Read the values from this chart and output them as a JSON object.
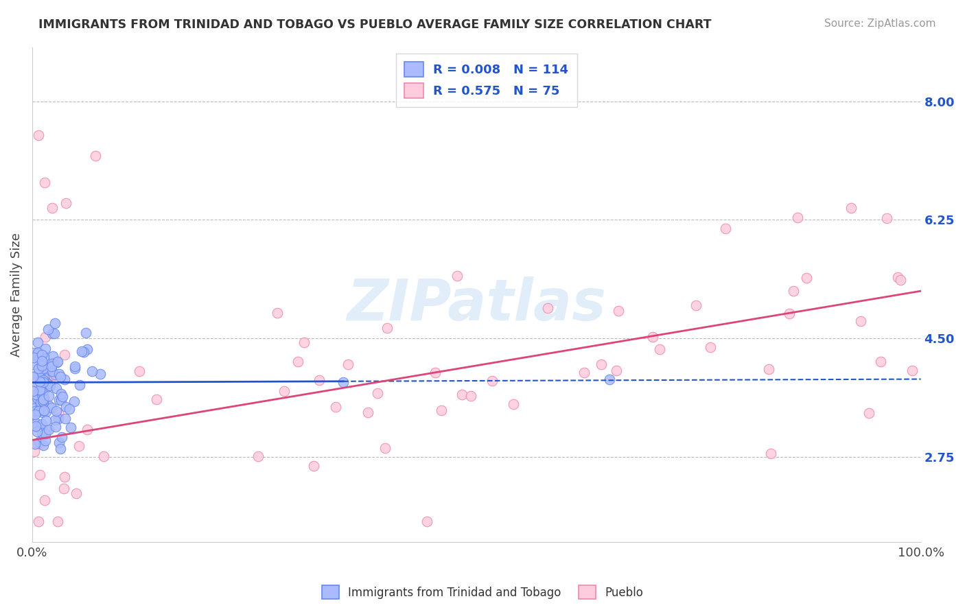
{
  "title": "IMMIGRANTS FROM TRINIDAD AND TOBAGO VS PUEBLO AVERAGE FAMILY SIZE CORRELATION CHART",
  "source": "Source: ZipAtlas.com",
  "ylabel": "Average Family Size",
  "xlim": [
    0,
    100
  ],
  "ylim": [
    1.5,
    8.8
  ],
  "yticks": [
    2.75,
    4.5,
    6.25,
    8.0
  ],
  "ytick_labels": [
    "2.75",
    "4.50",
    "6.25",
    "8.00"
  ],
  "xticklabels": [
    "0.0%",
    "100.0%"
  ],
  "background_color": "#ffffff",
  "grid_color": "#bbbbbb",
  "legend_r1": "0.008",
  "legend_n1": "114",
  "legend_r2": "0.575",
  "legend_n2": "75",
  "series1_color": "#6688ee",
  "series1_fill": "#aabbff",
  "series2_color": "#ee88aa",
  "series2_fill": "#ffccdd",
  "trend1_color": "#2255cc",
  "trend2_color": "#dd4477",
  "series1_name": "Immigrants from Trinidad and Tobago",
  "series2_name": "Pueblo",
  "trend1_solid_end": 35,
  "trend1_y_start": 3.85,
  "trend1_y_end": 3.9,
  "trend2_y_start": 3.0,
  "trend2_y_end": 5.2,
  "watermark_text": "ZIPatlas",
  "watermark_color": "#aaccee",
  "watermark_alpha": 0.35
}
